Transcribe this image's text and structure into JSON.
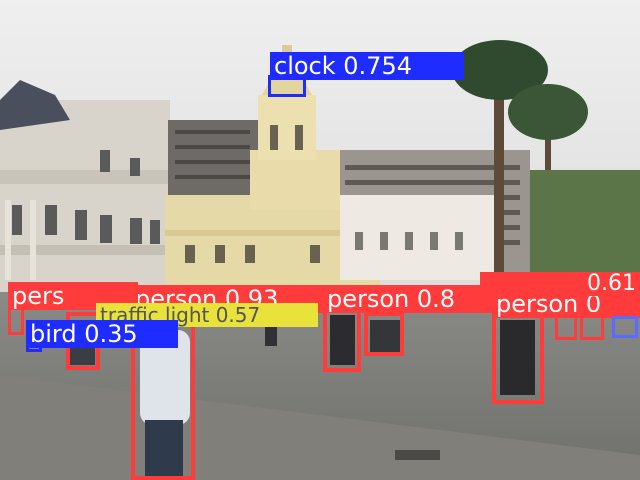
{
  "colors": {
    "person": "#ff3b3b",
    "clock": "#1f2cff",
    "bird": "#1f2cff",
    "traffic": "#e8e23a",
    "box_small": "#5b6bff"
  },
  "detections": [
    {
      "label": "clock 0.754"
    },
    {
      "label": "person 0.93"
    },
    {
      "label": "person 0.8"
    },
    {
      "label": "person 0"
    },
    {
      "label": "pers"
    },
    {
      "label": "bird 0.35"
    },
    {
      "label": "traffic light 0.57"
    },
    {
      "label": "0.61"
    }
  ]
}
